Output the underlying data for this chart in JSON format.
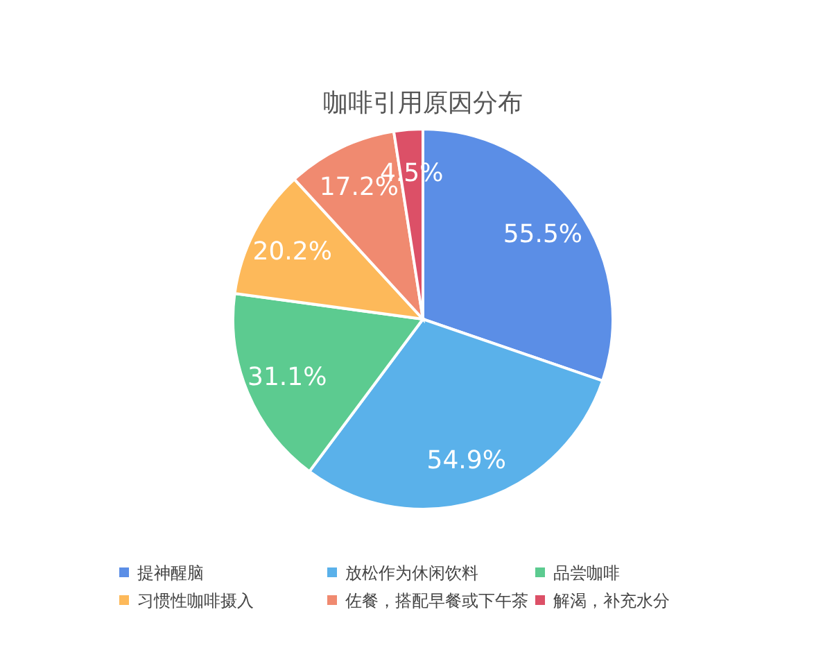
{
  "chart_data": {
    "type": "pie",
    "title": "咖啡引用原因分布",
    "categories": [
      "提神醒脑",
      "放松作为休闲饮料",
      "品尝咖啡",
      "习惯性咖啡摄入",
      "佐餐，搭配早餐或下午茶",
      "解渴，补充水分"
    ],
    "values": [
      55.5,
      54.9,
      31.1,
      20.2,
      17.2,
      4.5
    ],
    "colors": [
      "#5b8ee6",
      "#5ab1ea",
      "#5ccb90",
      "#fdb95a",
      "#f08a70",
      "#dc5067"
    ],
    "value_labels": [
      "55.5%",
      "54.9%",
      "31.1%",
      "20.2%",
      "17.2%",
      "4.5%"
    ],
    "legend": "bottom"
  }
}
